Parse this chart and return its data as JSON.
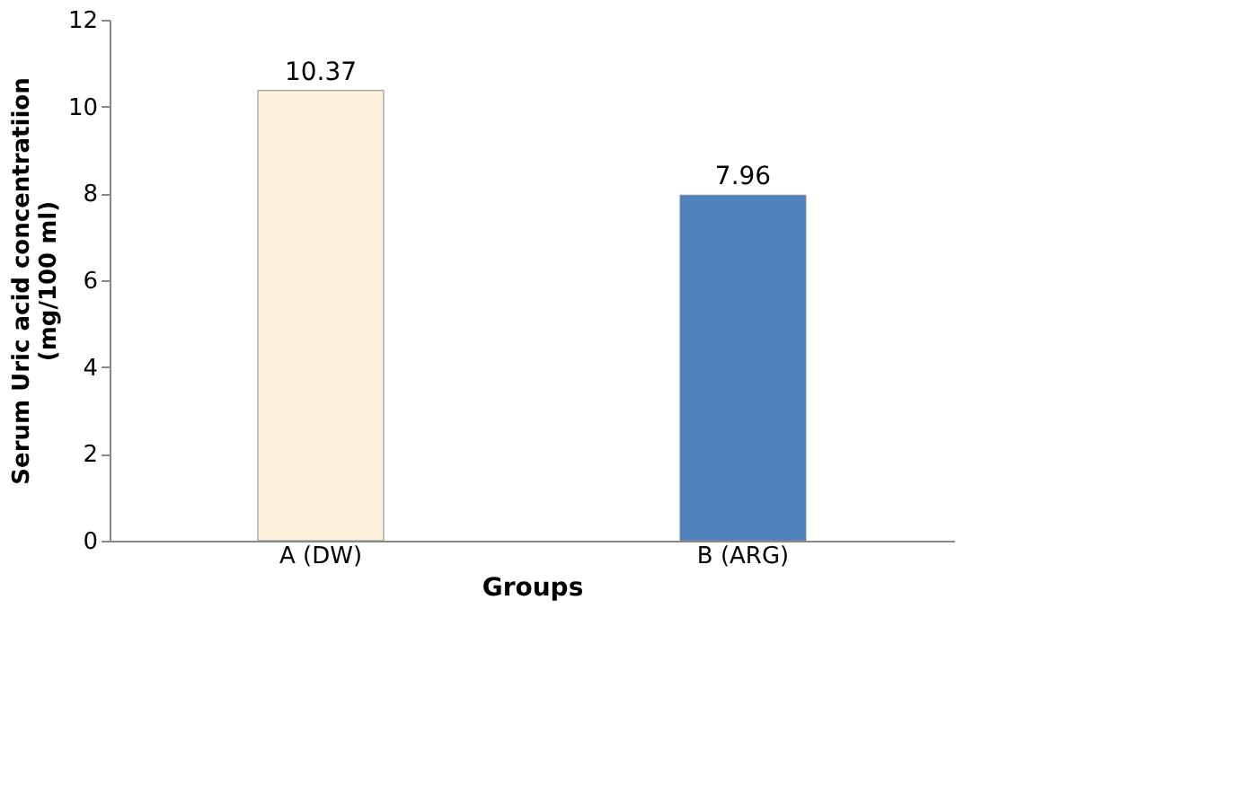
{
  "chart_data": {
    "type": "bar",
    "categories": [
      "A (DW)",
      "B (ARG)"
    ],
    "values": [
      10.37,
      7.96
    ],
    "colors": [
      "#fbf1dc",
      "#4f81bd"
    ],
    "xlabel": "Groups",
    "ylabel": "Serum Uric acid concentratiion\n(mg/100 ml)",
    "ylim": [
      0,
      12
    ],
    "yticks": [
      0,
      2,
      4,
      6,
      8,
      10,
      12
    ],
    "data_labels": true,
    "grid": false
  }
}
